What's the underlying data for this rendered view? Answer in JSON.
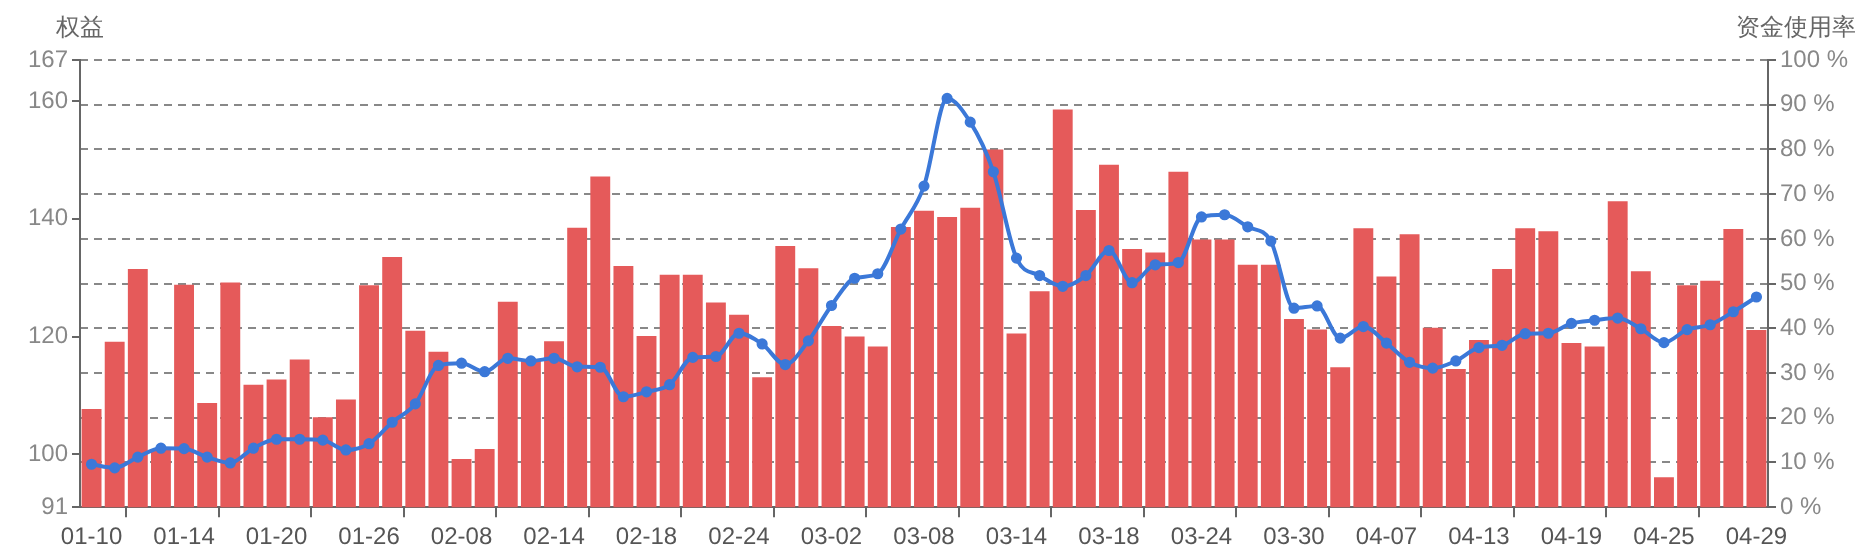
{
  "chart_data": {
    "type": "bar",
    "ylabel": "权益",
    "y2label": "资金使用率",
    "categories": [
      "01-10",
      null,
      null,
      null,
      "01-14",
      null,
      null,
      null,
      "01-20",
      null,
      null,
      null,
      "01-26",
      null,
      null,
      null,
      "02-08",
      null,
      null,
      null,
      "02-14",
      null,
      null,
      null,
      "02-18",
      null,
      null,
      null,
      "02-24",
      null,
      null,
      null,
      "03-02",
      null,
      null,
      null,
      "03-08",
      null,
      null,
      null,
      "03-14",
      null,
      null,
      null,
      "03-18",
      null,
      null,
      null,
      "03-24",
      null,
      null,
      null,
      "03-30",
      null,
      null,
      null,
      "04-07",
      null,
      null,
      null,
      "04-13",
      null,
      null,
      null,
      "04-19",
      null,
      null,
      null,
      "04-25",
      null,
      null,
      null,
      "04-29"
    ],
    "series": [
      {
        "color": "#e55a5a",
        "values": [
          107.7,
          119.1,
          131.5,
          100.8,
          128.8,
          108.7,
          129.2,
          111.8,
          112.7,
          116.1,
          106.3,
          109.3,
          128.7,
          133.5,
          121,
          117.4,
          99.2,
          100.9,
          125.9,
          116,
          119.2,
          138.5,
          147.2,
          132,
          120.1,
          130.5,
          130.5,
          125.8,
          123.7,
          113.1,
          135.4,
          131.6,
          121.8,
          120,
          118.3,
          138.6,
          141.4,
          140.3,
          141.9,
          151.8,
          120.5,
          127.7,
          158.6,
          141.5,
          149.2,
          134.9,
          134.3,
          148,
          136.5,
          136.5,
          132.2,
          132.2,
          123,
          121.2,
          114.8,
          138.4,
          130.2,
          137.4,
          121.5,
          114.5,
          119.4,
          131.5,
          138.4,
          137.9,
          118.9,
          118.3,
          143,
          131.1,
          96.1,
          128.7,
          129.5,
          138.3,
          121.1
        ]
      },
      {
        "type": "line",
        "axis": "y2",
        "color": "#3b78d8",
        "values": [
          9.6,
          8.8,
          11.2,
          13.2,
          13.1,
          11.2,
          9.9,
          13.2,
          15.2,
          15.2,
          15,
          12.8,
          14.2,
          19,
          23.1,
          31.7,
          32.2,
          30.3,
          33.3,
          32.7,
          33.3,
          31.4,
          31.3,
          24.7,
          25.8,
          27.4,
          33.5,
          33.7,
          38.9,
          36.5,
          31.9,
          37.2,
          45.1,
          51.2,
          52.2,
          62.2,
          71.8,
          91.4,
          86.1,
          75,
          55.7,
          51.8,
          49.4,
          51.8,
          57.4,
          50.2,
          54.2,
          54.7,
          64.9,
          65.4,
          62.7,
          59.5,
          44.5,
          45,
          37.8,
          40.4,
          36.7,
          32.4,
          31.1,
          32.7,
          35.7,
          36.2,
          38.8,
          38.9,
          41.1,
          41.8,
          42.3,
          39.9,
          36.8,
          39.7,
          40.8,
          43.7,
          47
        ]
      }
    ],
    "ylim": [
      91,
      167
    ],
    "yticks": [
      91,
      100,
      120,
      140,
      160,
      167
    ],
    "y2lim": [
      0,
      100
    ],
    "y2ticks": [
      {
        "value": 0,
        "label": "0 %"
      },
      {
        "value": 10,
        "label": "10 %"
      },
      {
        "value": 20,
        "label": "20 %"
      },
      {
        "value": 30,
        "label": "30 %"
      },
      {
        "value": 40,
        "label": "40 %"
      },
      {
        "value": 50,
        "label": "50 %"
      },
      {
        "value": 60,
        "label": "60 %"
      },
      {
        "value": 70,
        "label": "70 %"
      },
      {
        "value": 80,
        "label": "80 %"
      },
      {
        "value": 90,
        "label": "90 %"
      },
      {
        "value": 100,
        "label": "100 %"
      }
    ],
    "grid": "y",
    "marker": "circle",
    "line_style": "solid",
    "legend": false
  }
}
